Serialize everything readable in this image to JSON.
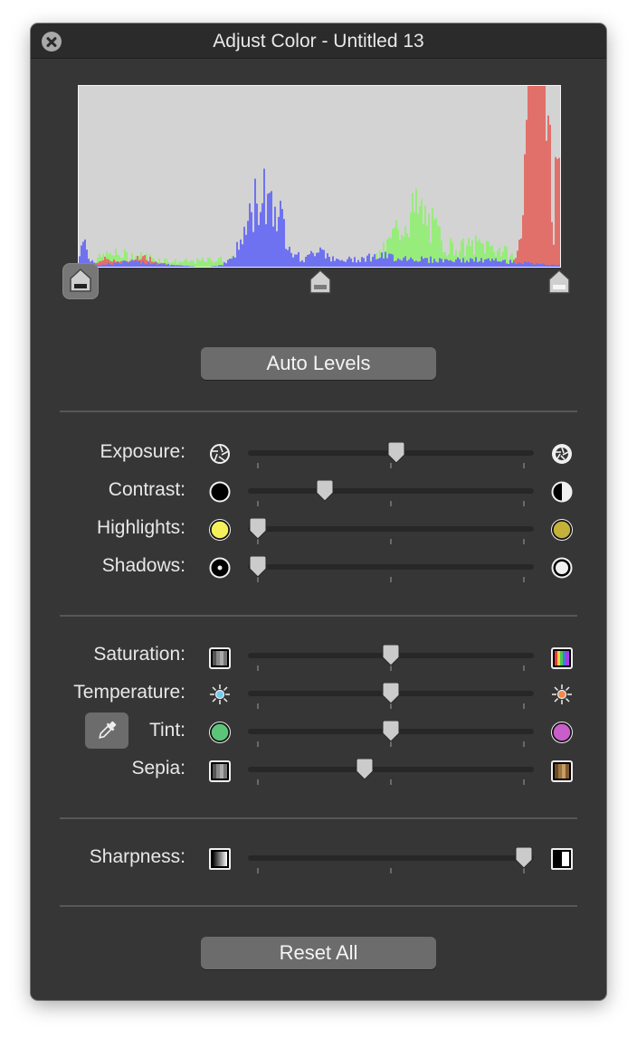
{
  "window": {
    "title": "Adjust Color - Untitled 13"
  },
  "levels": {
    "black_point": 0.0,
    "gray_point": 0.5,
    "white_point": 1.0
  },
  "buttons": {
    "auto_levels": "Auto Levels",
    "reset_all": "Reset All"
  },
  "sliders": {
    "exposure": {
      "label": "Exposure:",
      "value": 0.52
    },
    "contrast": {
      "label": "Contrast:",
      "value": 0.25
    },
    "highlights": {
      "label": "Highlights:",
      "value": 0.0
    },
    "shadows": {
      "label": "Shadows:",
      "value": 0.0
    },
    "saturation": {
      "label": "Saturation:",
      "value": 0.5
    },
    "temperature": {
      "label": "Temperature:",
      "value": 0.5
    },
    "tint": {
      "label": "Tint:",
      "value": 0.5
    },
    "sepia": {
      "label": "Sepia:",
      "value": 0.4
    },
    "sharpness": {
      "label": "Sharpness:",
      "value": 1.0
    }
  },
  "icons": {
    "close": "close-icon",
    "exposure_low": "aperture-icon",
    "exposure_high": "aperture-bright-icon",
    "contrast_low": "black-circle-icon",
    "contrast_high": "half-circle-icon",
    "highlights_low": "yellow-circle-icon",
    "highlights_high": "olive-circle-icon",
    "shadows_low": "dot-circle-icon",
    "shadows_high": "white-circle-icon",
    "saturation_low": "gray-stripes-icon",
    "saturation_high": "color-stripes-icon",
    "temperature_low": "cool-sun-icon",
    "temperature_high": "warm-sun-icon",
    "tint_low": "green-circle-icon",
    "tint_high": "magenta-circle-icon",
    "sepia_low": "gray-stripes-icon",
    "sepia_high": "sepia-stripes-icon",
    "sharpness_low": "gradient-square-icon",
    "sharpness_high": "sharp-square-icon",
    "eyedropper": "eyedropper-icon"
  },
  "colors": {
    "panel": "#363636",
    "histogram_bg": "#d3d3d3",
    "red": "#e2706a",
    "green": "#98ec7c",
    "blue": "#6f72f0"
  }
}
